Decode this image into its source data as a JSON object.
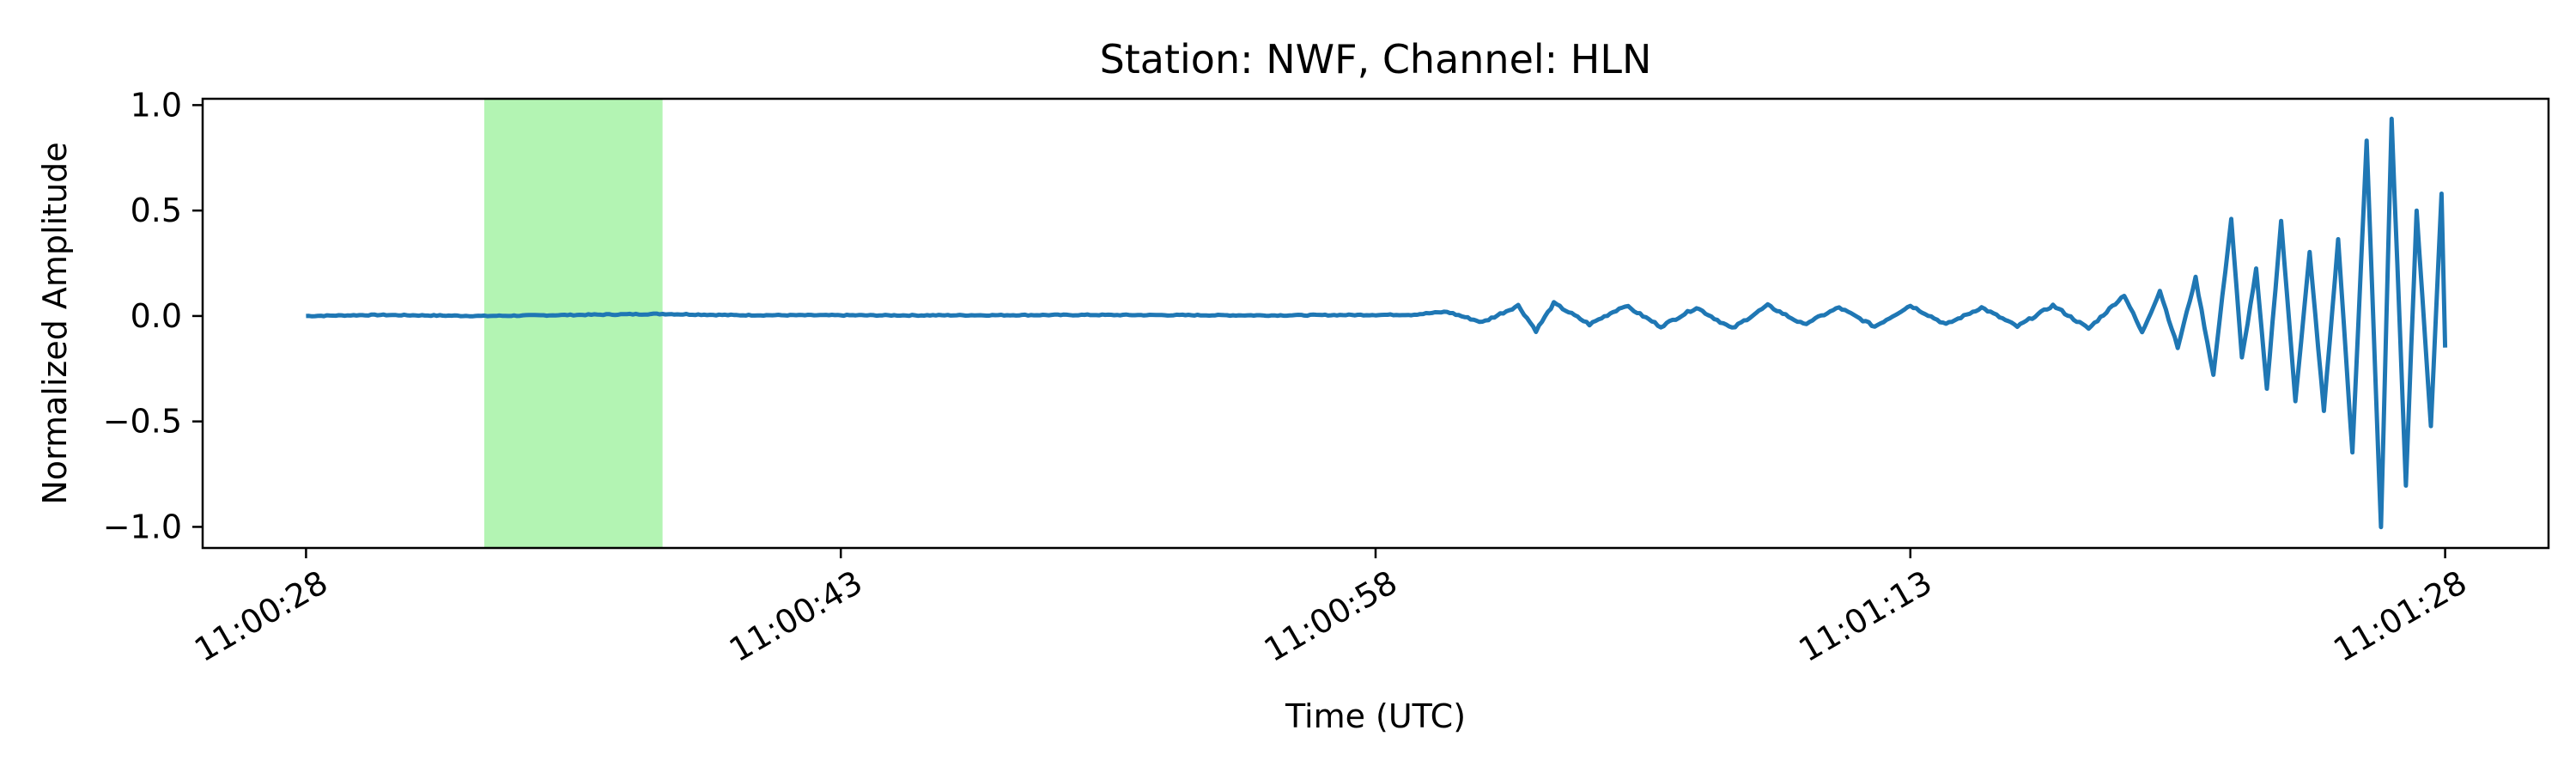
{
  "chart_data": {
    "type": "line",
    "title": "Station: NWF, Channel: HLN",
    "xlabel": "Time (UTC)",
    "ylabel": "Normalized Amplitude",
    "x_unit": "seconds",
    "xlim": [
      "11:00:25.1",
      "11:01:30.9"
    ],
    "ylim": [
      -1.1,
      1.03
    ],
    "x_ticks": [
      "11:00:28",
      "11:00:43",
      "11:00:58",
      "11:01:13",
      "11:01:28"
    ],
    "y_ticks": [
      -1.0,
      -0.5,
      0.0,
      0.5,
      1.0
    ],
    "y_tick_labels": [
      "−1.0",
      "−0.5",
      "0.0",
      "0.5",
      "1.0"
    ],
    "grid": false,
    "legend": "none",
    "highlight_region": {
      "x_start": "11:00:33",
      "x_end": "11:00:38",
      "color": "#b3f4b3"
    },
    "series": [
      {
        "color": "#1f77b4",
        "points": [
          [
            "11:00:28.0",
            0.0
          ],
          [
            "11:00:30.0",
            0.005
          ],
          [
            "11:00:33.0",
            0.0
          ],
          [
            "11:00:36.0",
            0.006
          ],
          [
            "11:00:38.0",
            0.01
          ],
          [
            "11:00:40.0",
            0.004
          ],
          [
            "11:00:45.0",
            0.003
          ],
          [
            "11:00:50.0",
            0.005
          ],
          [
            "11:00:55.0",
            0.003
          ],
          [
            "11:00:59.0",
            0.006
          ],
          [
            "11:01:00.0",
            0.02
          ],
          [
            "11:01:01.0",
            -0.03
          ],
          [
            "11:01:02.0",
            0.05
          ],
          [
            "11:01:02.5",
            -0.07
          ],
          [
            "11:01:03.0",
            0.06
          ],
          [
            "11:01:04.0",
            -0.04
          ],
          [
            "11:01:05.0",
            0.05
          ],
          [
            "11:01:06.0",
            -0.05
          ],
          [
            "11:01:07.0",
            0.04
          ],
          [
            "11:01:08.0",
            -0.06
          ],
          [
            "11:01:09.0",
            0.05
          ],
          [
            "11:01:10.0",
            -0.04
          ],
          [
            "11:01:11.0",
            0.04
          ],
          [
            "11:01:12.0",
            -0.05
          ],
          [
            "11:01:13.0",
            0.05
          ],
          [
            "11:01:14.0",
            -0.04
          ],
          [
            "11:01:15.0",
            0.04
          ],
          [
            "11:01:16.0",
            -0.05
          ],
          [
            "11:01:17.0",
            0.05
          ],
          [
            "11:01:18.0",
            -0.06
          ],
          [
            "11:01:19.0",
            0.1
          ],
          [
            "11:01:19.5",
            -0.08
          ],
          [
            "11:01:20.0",
            0.12
          ],
          [
            "11:01:20.5",
            -0.15
          ],
          [
            "11:01:21.0",
            0.18
          ],
          [
            "11:01:21.5",
            -0.28
          ],
          [
            "11:01:22.0",
            0.46
          ],
          [
            "11:01:22.3",
            -0.2
          ],
          [
            "11:01:22.7",
            0.22
          ],
          [
            "11:01:23.0",
            -0.35
          ],
          [
            "11:01:23.4",
            0.45
          ],
          [
            "11:01:23.8",
            -0.4
          ],
          [
            "11:01:24.2",
            0.3
          ],
          [
            "11:01:24.6",
            -0.45
          ],
          [
            "11:01:25.0",
            0.36
          ],
          [
            "11:01:25.4",
            -0.65
          ],
          [
            "11:01:25.8",
            0.83
          ],
          [
            "11:01:26.2",
            -1.0
          ],
          [
            "11:01:26.5",
            0.93
          ],
          [
            "11:01:26.9",
            -0.8
          ],
          [
            "11:01:27.2",
            0.5
          ],
          [
            "11:01:27.6",
            -0.52
          ],
          [
            "11:01:27.9",
            0.58
          ],
          [
            "11:01:28.0",
            -0.15
          ]
        ]
      }
    ]
  }
}
